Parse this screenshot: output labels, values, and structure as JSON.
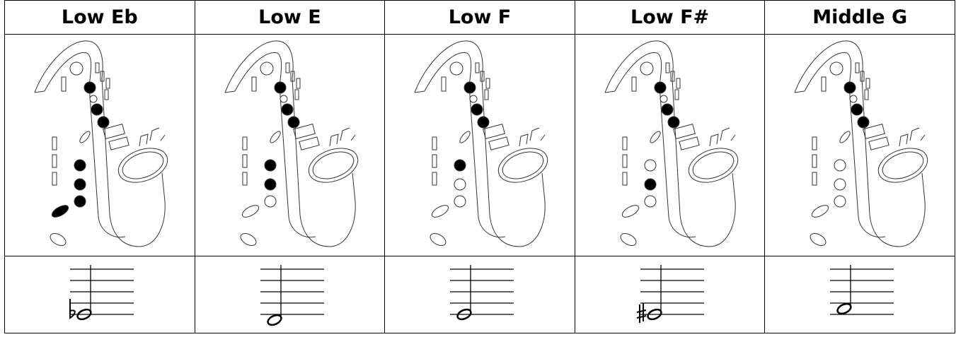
{
  "table": {
    "header": [
      "Low Eb",
      "Low E",
      "Low F",
      "Low F#",
      "Middle G"
    ]
  }
}
